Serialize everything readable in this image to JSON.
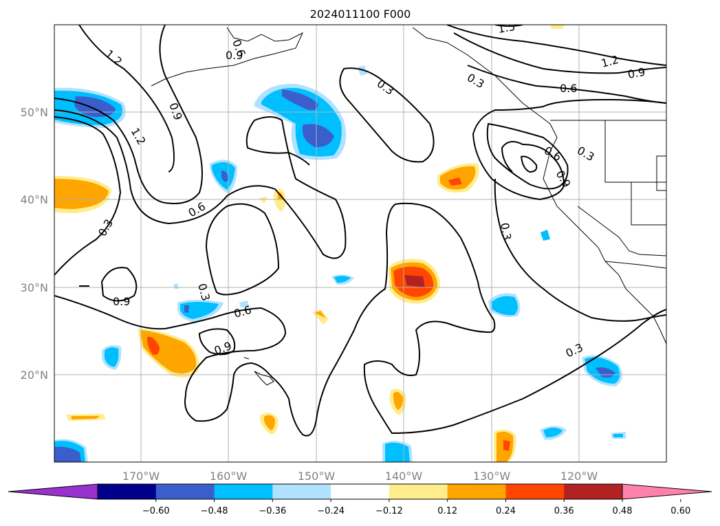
{
  "title": "2024011100 F000",
  "map": {
    "lat_labels": [
      "50°N",
      "40°N",
      "30°N",
      "20°N"
    ],
    "lon_labels": [
      "170°W",
      "160°W",
      "150°W",
      "140°W",
      "130°W",
      "120°W"
    ],
    "contour_labels": [
      "1.2",
      "0.6",
      "0.3",
      "0.9",
      "1.5",
      "1.2",
      "0.9",
      "0.6",
      "0.3",
      "0.9",
      "1.2",
      "0.6",
      "0.3",
      "0.6",
      "0.3",
      "0.9",
      "0.3",
      "0.6",
      "0.9",
      "0.3",
      "0.3",
      "0.9"
    ]
  },
  "colorbar": {
    "ticks": [
      "−0.60",
      "−0.48",
      "−0.36",
      "−0.24",
      "−0.12",
      "0.12",
      "0.24",
      "0.36",
      "0.48",
      "0.60"
    ],
    "colors": [
      "#9932cc",
      "#00008b",
      "#3a5fcd",
      "#00bfff",
      "#b0e2ff",
      "#ffffff",
      "#ffec8b",
      "#ffa500",
      "#ff4500",
      "#b22222",
      "#ff82ab"
    ]
  }
}
